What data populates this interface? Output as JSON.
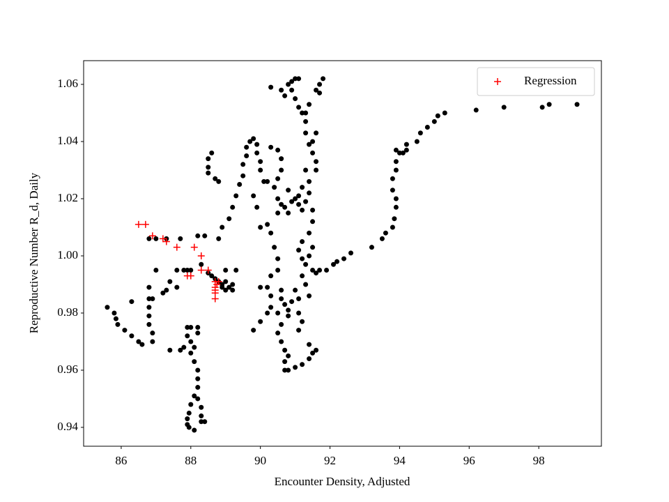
{
  "chart_data": {
    "type": "scatter",
    "xlabel": "Encounter Density, Adjusted",
    "ylabel": "Reproductive Number R_d, Daily",
    "xlim": [
      84.92,
      99.8
    ],
    "ylim": [
      0.9334,
      1.0683
    ],
    "xticks": [
      86,
      88,
      90,
      92,
      94,
      96,
      98
    ],
    "yticks": [
      0.94,
      0.96,
      0.98,
      {
        "value": 1,
        "label": "1.00"
      },
      1.02,
      1.04,
      1.06
    ],
    "legend": "upper right",
    "series": [
      {
        "color": "#000000",
        "marker": "dot",
        "points": [
          [
            85.6,
            0.982
          ],
          [
            85.8,
            0.98
          ],
          [
            85.85,
            0.978
          ],
          [
            85.9,
            0.976
          ],
          [
            86.1,
            0.974
          ],
          [
            86.3,
            0.972
          ],
          [
            86.5,
            0.97
          ],
          [
            86.6,
            0.969
          ],
          [
            86.9,
            0.97
          ],
          [
            86.9,
            0.973
          ],
          [
            86.8,
            0.976
          ],
          [
            86.8,
            0.979
          ],
          [
            86.8,
            0.982
          ],
          [
            86.8,
            0.985
          ],
          [
            86.9,
            0.985
          ],
          [
            86.8,
            0.989
          ],
          [
            87.0,
            0.995
          ],
          [
            86.3,
            0.984
          ],
          [
            86.8,
            1.006
          ],
          [
            87.0,
            1.006
          ],
          [
            87.3,
            1.006
          ],
          [
            87.7,
            1.006
          ],
          [
            87.8,
            0.995
          ],
          [
            87.9,
            0.995
          ],
          [
            88.0,
            0.995
          ],
          [
            87.6,
            0.995
          ],
          [
            87.4,
            0.991
          ],
          [
            87.3,
            0.988
          ],
          [
            87.2,
            0.987
          ],
          [
            87.6,
            0.989
          ],
          [
            87.4,
            0.967
          ],
          [
            87.7,
            0.967
          ],
          [
            87.8,
            0.968
          ],
          [
            87.9,
            0.975
          ],
          [
            87.9,
            0.972
          ],
          [
            88.0,
            0.97
          ],
          [
            88.0,
            0.966
          ],
          [
            88.1,
            0.963
          ],
          [
            88.2,
            0.96
          ],
          [
            88.2,
            0.957
          ],
          [
            88.2,
            0.954
          ],
          [
            88.1,
            0.951
          ],
          [
            88.0,
            0.948
          ],
          [
            87.95,
            0.945
          ],
          [
            87.9,
            0.943
          ],
          [
            87.9,
            0.941
          ],
          [
            87.95,
            0.94
          ],
          [
            88.1,
            0.939
          ],
          [
            88.3,
            0.942
          ],
          [
            88.4,
            0.942
          ],
          [
            88.3,
            0.944
          ],
          [
            88.3,
            0.947
          ],
          [
            88.2,
            0.95
          ],
          [
            88.2,
            0.975
          ],
          [
            88.2,
            0.973
          ],
          [
            88.1,
            0.968
          ],
          [
            88.0,
            0.975
          ],
          [
            88.2,
            1.007
          ],
          [
            88.4,
            1.007
          ],
          [
            88.3,
            0.997
          ],
          [
            88.5,
            0.994
          ],
          [
            88.6,
            0.993
          ],
          [
            88.7,
            0.992
          ],
          [
            88.8,
            0.991
          ],
          [
            88.9,
            0.989
          ],
          [
            89.0,
            0.988
          ],
          [
            89.1,
            0.989
          ],
          [
            89.2,
            0.99
          ],
          [
            89.0,
            0.991
          ],
          [
            88.9,
            0.99
          ],
          [
            89.2,
            0.988
          ],
          [
            89.3,
            0.995
          ],
          [
            89.0,
            0.995
          ],
          [
            88.8,
            1.006
          ],
          [
            88.9,
            1.01
          ],
          [
            89.1,
            1.013
          ],
          [
            89.2,
            1.017
          ],
          [
            89.3,
            1.021
          ],
          [
            89.4,
            1.025
          ],
          [
            89.5,
            1.028
          ],
          [
            89.5,
            1.032
          ],
          [
            89.6,
            1.035
          ],
          [
            89.6,
            1.038
          ],
          [
            89.7,
            1.04
          ],
          [
            89.8,
            1.041
          ],
          [
            89.9,
            1.039
          ],
          [
            89.9,
            1.036
          ],
          [
            90.0,
            1.033
          ],
          [
            90.0,
            1.03
          ],
          [
            90.1,
            1.026
          ],
          [
            88.5,
            1.034
          ],
          [
            88.6,
            1.036
          ],
          [
            88.5,
            1.031
          ],
          [
            88.5,
            1.029
          ],
          [
            88.7,
            1.027
          ],
          [
            88.8,
            1.026
          ],
          [
            89.8,
            0.974
          ],
          [
            90.0,
            0.977
          ],
          [
            90.2,
            0.98
          ],
          [
            90.3,
            0.982
          ],
          [
            90.3,
            0.986
          ],
          [
            90.2,
            0.989
          ],
          [
            90.0,
            0.989
          ],
          [
            90.3,
            0.993
          ],
          [
            90.5,
            0.995
          ],
          [
            90.5,
            0.999
          ],
          [
            90.4,
            1.003
          ],
          [
            90.3,
            1.008
          ],
          [
            90.2,
            1.011
          ],
          [
            90.0,
            1.01
          ],
          [
            89.9,
            1.017
          ],
          [
            89.8,
            1.021
          ],
          [
            90.2,
            1.026
          ],
          [
            90.4,
            1.024
          ],
          [
            90.5,
            1.027
          ],
          [
            90.6,
            1.03
          ],
          [
            90.6,
            1.034
          ],
          [
            90.5,
            1.037
          ],
          [
            90.3,
            1.038
          ],
          [
            90.3,
            1.059
          ],
          [
            90.8,
            1.06
          ],
          [
            90.9,
            1.061
          ],
          [
            91.0,
            1.062
          ],
          [
            91.1,
            1.062
          ],
          [
            90.9,
            1.058
          ],
          [
            91.0,
            1.055
          ],
          [
            91.1,
            1.052
          ],
          [
            91.2,
            1.05
          ],
          [
            91.3,
            1.047
          ],
          [
            91.3,
            1.043
          ],
          [
            91.4,
            1.039
          ],
          [
            91.5,
            1.036
          ],
          [
            91.6,
            1.033
          ],
          [
            91.6,
            1.03
          ],
          [
            91.5,
            1.04
          ],
          [
            91.6,
            1.043
          ],
          [
            91.7,
            1.057
          ],
          [
            91.8,
            1.062
          ],
          [
            91.7,
            1.06
          ],
          [
            91.6,
            1.058
          ],
          [
            91.4,
            1.053
          ],
          [
            91.3,
            1.05
          ],
          [
            90.7,
            1.056
          ],
          [
            90.6,
            1.058
          ],
          [
            90.5,
            1.02
          ],
          [
            90.6,
            1.018
          ],
          [
            90.7,
            1.017
          ],
          [
            90.9,
            1.019
          ],
          [
            91.0,
            1.02
          ],
          [
            91.1,
            1.018
          ],
          [
            91.2,
            1.016
          ],
          [
            91.3,
            1.019
          ],
          [
            91.4,
            1.022
          ],
          [
            91.4,
            1.026
          ],
          [
            91.3,
            1.03
          ],
          [
            91.2,
            1.024
          ],
          [
            91.1,
            1.021
          ],
          [
            90.8,
            1.015
          ],
          [
            90.5,
            1.015
          ],
          [
            90.8,
            1.023
          ],
          [
            91.4,
            1.008
          ],
          [
            91.5,
            1.003
          ],
          [
            91.4,
            1.0
          ],
          [
            91.3,
            0.997
          ],
          [
            91.2,
            0.993
          ],
          [
            91.3,
            0.99
          ],
          [
            91.4,
            0.986
          ],
          [
            91.5,
            0.995
          ],
          [
            91.6,
            0.994
          ],
          [
            91.5,
            1.012
          ],
          [
            91.5,
            1.016
          ],
          [
            91.2,
            1.005
          ],
          [
            91.1,
            1.002
          ],
          [
            91.2,
            0.999
          ],
          [
            90.6,
            0.985
          ],
          [
            90.7,
            0.983
          ],
          [
            90.8,
            0.981
          ],
          [
            90.9,
            0.984
          ],
          [
            90.8,
            0.979
          ],
          [
            90.6,
            0.976
          ],
          [
            90.5,
            0.973
          ],
          [
            90.6,
            0.97
          ],
          [
            90.7,
            0.967
          ],
          [
            90.8,
            0.965
          ],
          [
            90.7,
            0.963
          ],
          [
            90.7,
            0.96
          ],
          [
            90.8,
            0.96
          ],
          [
            91.0,
            0.961
          ],
          [
            91.2,
            0.962
          ],
          [
            91.4,
            0.964
          ],
          [
            91.5,
            0.966
          ],
          [
            91.6,
            0.967
          ],
          [
            91.4,
            0.969
          ],
          [
            91.1,
            0.98
          ],
          [
            91.2,
            0.977
          ],
          [
            91.1,
            0.985
          ],
          [
            91.0,
            0.988
          ],
          [
            91.1,
            0.974
          ],
          [
            90.5,
            0.98
          ],
          [
            90.6,
            0.988
          ],
          [
            91.7,
            0.995
          ],
          [
            91.9,
            0.995
          ],
          [
            92.1,
            0.997
          ],
          [
            92.2,
            0.998
          ],
          [
            92.4,
            0.999
          ],
          [
            92.6,
            1.001
          ],
          [
            93.2,
            1.003
          ],
          [
            93.5,
            1.006
          ],
          [
            93.6,
            1.008
          ],
          [
            93.8,
            1.01
          ],
          [
            93.85,
            1.013
          ],
          [
            93.9,
            1.017
          ],
          [
            93.9,
            1.02
          ],
          [
            93.8,
            1.023
          ],
          [
            93.8,
            1.027
          ],
          [
            93.9,
            1.03
          ],
          [
            93.9,
            1.033
          ],
          [
            94.0,
            1.036
          ],
          [
            93.9,
            1.037
          ],
          [
            94.1,
            1.036
          ],
          [
            94.2,
            1.037
          ],
          [
            94.2,
            1.039
          ],
          [
            94.5,
            1.04
          ],
          [
            94.6,
            1.043
          ],
          [
            94.8,
            1.045
          ],
          [
            95.0,
            1.047
          ],
          [
            95.1,
            1.049
          ],
          [
            95.3,
            1.05
          ],
          [
            96.2,
            1.051
          ],
          [
            97.0,
            1.052
          ],
          [
            98.1,
            1.052
          ],
          [
            98.3,
            1.053
          ],
          [
            99.1,
            1.053
          ]
        ]
      },
      {
        "name": "Regression",
        "color": "#ff0000",
        "marker": "plus",
        "points": [
          [
            86.5,
            1.011
          ],
          [
            86.7,
            1.011
          ],
          [
            86.9,
            1.007
          ],
          [
            87.2,
            1.006
          ],
          [
            87.3,
            1.005
          ],
          [
            87.6,
            1.003
          ],
          [
            88.1,
            1.003
          ],
          [
            88.3,
            1.0
          ],
          [
            88.3,
            0.995
          ],
          [
            88.5,
            0.995
          ],
          [
            87.9,
            0.993
          ],
          [
            88.0,
            0.993
          ],
          [
            88.7,
            0.991
          ],
          [
            88.8,
            0.991
          ],
          [
            88.7,
            0.989
          ],
          [
            88.7,
            0.988
          ],
          [
            88.7,
            0.987
          ],
          [
            88.7,
            0.985
          ],
          [
            88.75,
            0.99
          ]
        ]
      }
    ]
  }
}
